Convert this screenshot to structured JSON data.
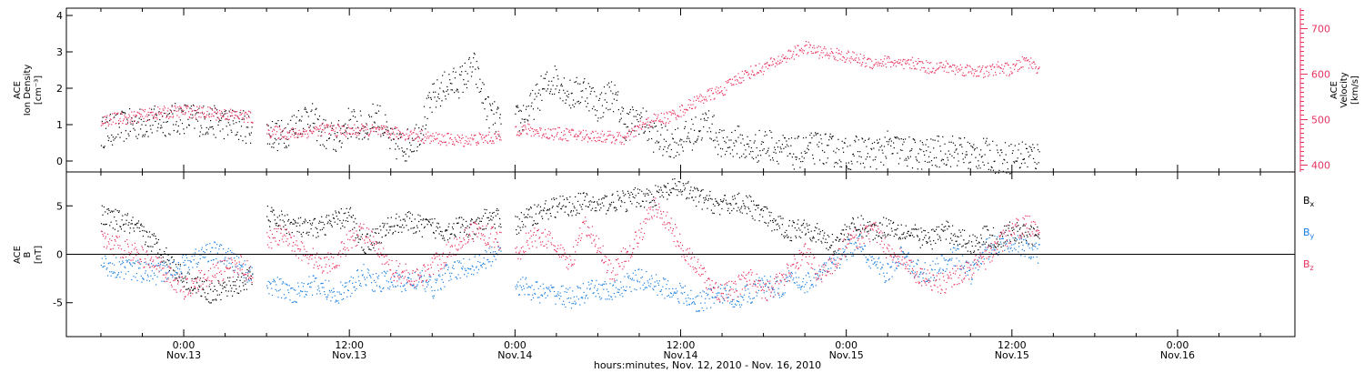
{
  "chart_data": [
    {
      "type": "scatter",
      "panel": "ion-density-velocity",
      "left_axis": {
        "label_lines": [
          "ACE",
          "Ion Density",
          "[cm⁻³]"
        ],
        "ylim": [
          -0.3,
          4.2
        ],
        "ticks": [
          "0",
          "1",
          "2",
          "3",
          "4"
        ],
        "tick_values": [
          0,
          1,
          2,
          3,
          4
        ],
        "color": "#000000"
      },
      "right_axis": {
        "label_lines": [
          "ACE",
          "Velocity",
          "[km/s]"
        ],
        "ylim": [
          385,
          745
        ],
        "ticks": [
          "400",
          "500",
          "600",
          "700"
        ],
        "tick_values": [
          400,
          500,
          600,
          700
        ],
        "color": "#e8335f"
      },
      "series": [
        {
          "axis": "left",
          "color": "#000000",
          "segments": [
            {
              "t": [
                -6,
                -4,
                -2,
                0,
                2,
                4,
                5
              ],
              "v": [
                0.8,
                1.0,
                1.1,
                1.2,
                1.1,
                1.0,
                0.9
              ]
            },
            {
              "t": [
                6,
                7,
                8,
                9,
                10,
                11,
                12,
                13,
                14,
                15,
                16,
                17,
                18,
                19,
                20,
                21,
                22,
                23
              ],
              "v": [
                0.8,
                0.7,
                1.0,
                1.3,
                0.8,
                0.6,
                1.1,
                0.9,
                1.3,
                0.5,
                0.4,
                0.8,
                1.7,
                2.1,
                2.2,
                2.6,
                1.4,
                1.0
              ]
            },
            {
              "t": [
                24,
                25,
                26,
                27,
                28,
                29,
                30,
                31,
                32,
                33,
                34,
                35,
                36,
                37,
                38,
                39,
                40,
                41,
                42,
                43,
                44,
                45,
                46,
                47,
                48,
                49,
                50,
                51,
                52,
                53,
                54,
                55,
                56,
                57,
                58,
                59,
                60,
                61,
                62
              ],
              "v": [
                1.1,
                1.4,
                2.0,
                2.3,
                1.8,
                2.0,
                1.5,
                1.9,
                1.0,
                1.2,
                0.7,
                0.5,
                0.6,
                0.8,
                1.1,
                0.4,
                0.6,
                0.3,
                0.5,
                0.4,
                0.2,
                0.3,
                0.4,
                0.3,
                0.2,
                0.3,
                0.2,
                0.4,
                0.3,
                0.2,
                0.2,
                0.3,
                0.3,
                0.2,
                0.2,
                0.1,
                0.1,
                0.2,
                0.1
              ]
            }
          ]
        },
        {
          "axis": "right",
          "color": "#e8335f",
          "segments": [
            {
              "t": [
                -6,
                -4,
                -2,
                0,
                2,
                4,
                5
              ],
              "v": [
                500,
                505,
                515,
                520,
                515,
                510,
                505
              ]
            },
            {
              "t": [
                6,
                7,
                8,
                9,
                10,
                11,
                12,
                13,
                14,
                15,
                16,
                17,
                18,
                19,
                20,
                21,
                22,
                23
              ],
              "v": [
                475,
                472,
                470,
                475,
                480,
                478,
                476,
                478,
                475,
                472,
                470,
                465,
                460,
                458,
                455,
                458,
                460,
                462
              ]
            },
            {
              "t": [
                24,
                25,
                26,
                27,
                28,
                29,
                30,
                31,
                32,
                33,
                34,
                35,
                36,
                37,
                38,
                39,
                40,
                41,
                42,
                43,
                44,
                45,
                46,
                47,
                48,
                49,
                50,
                51,
                52,
                53,
                54,
                55,
                56,
                57,
                58,
                59,
                60,
                61,
                62
              ],
              "v": [
                480,
                478,
                472,
                470,
                468,
                466,
                465,
                462,
                458,
                485,
                500,
                505,
                520,
                540,
                555,
                565,
                590,
                605,
                615,
                630,
                645,
                660,
                650,
                645,
                640,
                632,
                625,
                630,
                620,
                625,
                615,
                618,
                612,
                610,
                605,
                615,
                610,
                632,
                612
              ]
            }
          ]
        }
      ]
    },
    {
      "type": "scatter",
      "panel": "magnetic-field",
      "left_axis": {
        "label_lines": [
          "ACE",
          "B",
          "[nT]"
        ],
        "ylim": [
          -8.5,
          8.5
        ],
        "ticks": [
          "-5",
          "0",
          "5"
        ],
        "tick_values": [
          -5,
          0,
          5
        ],
        "zero_line": true
      },
      "legend": {
        "placement": "right",
        "entries": [
          {
            "main": "B",
            "sub": "x",
            "color": "#000000"
          },
          {
            "main": "B",
            "sub": "y",
            "color": "#1a7fe0"
          },
          {
            "main": "B",
            "sub": "z",
            "color": "#e8335f"
          }
        ]
      },
      "series": [
        {
          "color": "#000000",
          "segments": [
            {
              "t": [
                -6,
                -4,
                -2,
                0,
                2,
                4,
                5
              ],
              "v": [
                4.0,
                3.2,
                1.0,
                -2.5,
                -4.0,
                -3.0,
                -2.2
              ]
            },
            {
              "t": [
                6,
                7,
                8,
                9,
                10,
                11,
                12,
                13,
                14,
                15,
                16,
                17,
                18,
                19,
                20,
                21,
                22,
                23
              ],
              "v": [
                4.0,
                3.5,
                3.0,
                2.5,
                3.0,
                3.5,
                4.0,
                1.0,
                2.0,
                3.0,
                3.5,
                3.0,
                2.8,
                2.5,
                3.0,
                2.5,
                4.0,
                3.5
              ]
            },
            {
              "t": [
                24,
                25,
                26,
                27,
                28,
                29,
                30,
                31,
                32,
                33,
                34,
                35,
                36,
                37,
                38,
                39,
                40,
                41,
                42,
                43,
                44,
                45,
                46,
                47,
                48,
                49,
                50,
                51,
                52,
                53,
                54,
                55,
                56,
                57,
                58,
                59,
                60,
                61,
                62
              ],
              "v": [
                3.0,
                4.0,
                4.5,
                5.0,
                5.0,
                5.5,
                5.0,
                5.5,
                5.5,
                6.0,
                6.0,
                6.5,
                7.0,
                6.0,
                5.5,
                5.0,
                5.5,
                5.0,
                4.0,
                3.0,
                2.5,
                3.0,
                2.0,
                1.0,
                2.5,
                3.0,
                2.5,
                3.0,
                2.5,
                2.0,
                1.5,
                2.5,
                2.0,
                1.0,
                2.0,
                1.5,
                2.5,
                2.0,
                2.0
              ]
            }
          ]
        },
        {
          "color": "#1a7fe0",
          "segments": [
            {
              "t": [
                -6,
                -4,
                -2,
                0,
                2,
                4,
                5
              ],
              "v": [
                -1.0,
                -1.5,
                -2.0,
                -1.0,
                0.5,
                -1.0,
                -2.5
              ]
            },
            {
              "t": [
                6,
                7,
                8,
                9,
                10,
                11,
                12,
                13,
                14,
                15,
                16,
                17,
                18,
                19,
                20,
                21,
                22,
                23
              ],
              "v": [
                -3.0,
                -3.5,
                -4.0,
                -3.0,
                -3.5,
                -4.0,
                -3.5,
                -2.0,
                -3.0,
                -2.5,
                -3.0,
                -2.5,
                -3.5,
                -2.0,
                -1.5,
                -1.0,
                -0.5,
                1.0
              ]
            },
            {
              "t": [
                24,
                25,
                26,
                27,
                28,
                29,
                30,
                31,
                32,
                33,
                34,
                35,
                36,
                37,
                38,
                39,
                40,
                41,
                42,
                43,
                44,
                45,
                46,
                47,
                48,
                49,
                50,
                51,
                52,
                53,
                54,
                55,
                56,
                57,
                58,
                59,
                60,
                61,
                62
              ],
              "v": [
                -3.0,
                -3.5,
                -4.0,
                -4.0,
                -4.5,
                -4.0,
                -3.5,
                -4.0,
                -3.0,
                -2.5,
                -3.0,
                -3.5,
                -4.0,
                -5.0,
                -4.5,
                -4.0,
                -4.5,
                -4.0,
                -3.0,
                -3.5,
                -2.5,
                -3.0,
                -2.0,
                -1.0,
                0.5,
                1.0,
                -1.0,
                -2.0,
                0.0,
                -1.5,
                -2.0,
                -1.0,
                0.0,
                -2.0,
                0.5,
                1.0,
                1.5,
                0.5,
                0.0
              ]
            }
          ]
        },
        {
          "color": "#e8335f",
          "segments": [
            {
              "t": [
                -6,
                -4,
                -2,
                0,
                2,
                4,
                5
              ],
              "v": [
                1.5,
                0.5,
                -1.0,
                -3.5,
                -2.0,
                -1.0,
                -2.0
              ]
            },
            {
              "t": [
                6,
                7,
                8,
                9,
                10,
                11,
                12,
                13,
                14,
                15,
                16,
                17,
                18,
                19,
                20,
                21,
                22,
                23
              ],
              "v": [
                1.5,
                2.0,
                1.0,
                0.0,
                -1.0,
                -0.5,
                1.5,
                2.5,
                0.5,
                -1.5,
                -2.0,
                -2.5,
                -1.0,
                0.0,
                1.5,
                2.5,
                2.0,
                1.5
              ]
            },
            {
              "t": [
                24,
                25,
                26,
                27,
                28,
                29,
                30,
                31,
                32,
                33,
                34,
                35,
                36,
                37,
                38,
                39,
                40,
                41,
                42,
                43,
                44,
                45,
                46,
                47,
                48,
                49,
                50,
                51,
                52,
                53,
                54,
                55,
                56,
                57,
                58,
                59,
                60,
                61,
                62
              ],
              "v": [
                0.0,
                1.5,
                2.0,
                0.5,
                -1.0,
                3.0,
                1.0,
                -2.0,
                0.0,
                2.0,
                5.0,
                3.5,
                1.0,
                -1.0,
                -3.0,
                -4.0,
                -3.5,
                -2.0,
                -4.0,
                -3.0,
                -1.5,
                0.5,
                -2.0,
                -1.0,
                1.0,
                2.0,
                2.5,
                0.5,
                -0.5,
                -2.0,
                -2.5,
                -3.0,
                -2.0,
                -1.5,
                -0.5,
                1.0,
                2.5,
                3.0,
                3.0
              ]
            }
          ]
        }
      ]
    }
  ],
  "x_axis": {
    "title": "hours:minutes, Nov. 12, 2010 - Nov. 16, 2010",
    "xlim": [
      -8.5,
      80.5
    ],
    "tick_hours": [
      0,
      12,
      24,
      36,
      48,
      60,
      72
    ],
    "tick_time_labels": [
      "0:00",
      "12:00",
      "0:00",
      "12:00",
      "0:00",
      "12:00",
      "0:00"
    ],
    "tick_date_labels": [
      "Nov.13",
      "Nov.13",
      "Nov.14",
      "Nov.14",
      "Nov.15",
      "Nov.15",
      "Nov.16"
    ]
  }
}
